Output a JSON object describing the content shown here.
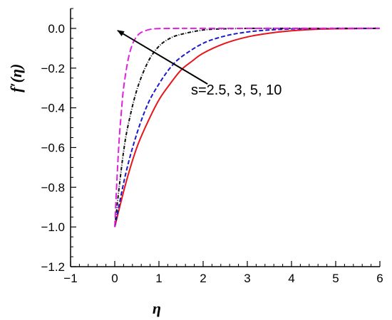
{
  "chart_data": {
    "type": "line",
    "xlabel": "η",
    "ylabel": "f′(η)",
    "xlim": [
      -1,
      6
    ],
    "ylim": [
      -1.2,
      0.1
    ],
    "x_ticks": [
      -1,
      0,
      1,
      2,
      3,
      4,
      5,
      6
    ],
    "x_tick_labels": [
      "−1",
      "0",
      "1",
      "2",
      "3",
      "4",
      "5",
      "6"
    ],
    "y_ticks": [
      0.0,
      -0.2,
      -0.4,
      -0.6,
      -0.8,
      -1.0,
      -1.2
    ],
    "y_tick_labels": [
      "0.0",
      "−0.2",
      "−0.4",
      "−0.6",
      "−0.8",
      "−1.0",
      "−1.2"
    ],
    "grid": false,
    "annotation": {
      "text": "s=2.5, 3, 5, 10",
      "arrow_from": [
        2.1,
        -0.28
      ],
      "arrow_to": [
        0.0,
        0.0
      ]
    },
    "series": [
      {
        "color": "#e8141c",
        "dash": "solid",
        "x": [
          0,
          0.25,
          0.5,
          0.75,
          1.0,
          1.25,
          1.5,
          1.75,
          2.0,
          2.5,
          3.0,
          3.5,
          4.0,
          4.5,
          5.0,
          5.5,
          6.0
        ],
        "y": [
          -1.0,
          -0.78,
          -0.6,
          -0.47,
          -0.36,
          -0.28,
          -0.21,
          -0.165,
          -0.125,
          -0.075,
          -0.043,
          -0.024,
          -0.012,
          -0.005,
          -0.002,
          -0.001,
          0.0
        ]
      },
      {
        "color": "#1a1acc",
        "dash": "6,3",
        "x": [
          0,
          0.25,
          0.5,
          0.75,
          1.0,
          1.25,
          1.5,
          2.0,
          2.5,
          3.0,
          3.5,
          4.0,
          4.5,
          5.0,
          6.0
        ],
        "y": [
          -1.0,
          -0.73,
          -0.53,
          -0.38,
          -0.28,
          -0.2,
          -0.145,
          -0.075,
          -0.038,
          -0.018,
          -0.008,
          -0.003,
          -0.001,
          0.0,
          0.0
        ]
      },
      {
        "color": "#111111",
        "dash": "5,2,1,2",
        "x": [
          0,
          0.1,
          0.2,
          0.3,
          0.5,
          0.75,
          1.0,
          1.25,
          1.5,
          2.0,
          2.5,
          3.0,
          4.0,
          6.0
        ],
        "y": [
          -1.0,
          -0.8,
          -0.62,
          -0.49,
          -0.31,
          -0.17,
          -0.09,
          -0.05,
          -0.03,
          -0.008,
          -0.002,
          0.0,
          0.0,
          0.0
        ]
      },
      {
        "color": "#e020e0",
        "dash": "9,4",
        "x": [
          0,
          0.05,
          0.1,
          0.15,
          0.2,
          0.3,
          0.4,
          0.5,
          0.6,
          0.8,
          1.0,
          1.5,
          2.0,
          6.0
        ],
        "y": [
          -1.0,
          -0.76,
          -0.56,
          -0.42,
          -0.3,
          -0.16,
          -0.08,
          -0.04,
          -0.02,
          -0.005,
          -0.001,
          0.0,
          0.0,
          0.0
        ]
      }
    ]
  }
}
